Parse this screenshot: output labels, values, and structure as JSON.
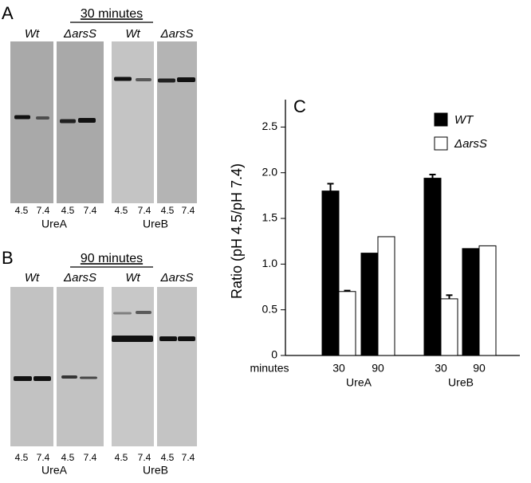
{
  "panel_a": {
    "label": "A",
    "title": "30 minutes",
    "strains": [
      "Wt",
      "ΔarsS",
      "Wt",
      "ΔarsS"
    ],
    "ph": [
      "4.5",
      "7.4",
      "4.5",
      "7.4",
      "4.5",
      "7.4",
      "4.5",
      "7.4"
    ],
    "proteins": [
      "UreA",
      "UreB"
    ]
  },
  "panel_b": {
    "label": "B",
    "title": "90 minutes",
    "strains": [
      "Wt",
      "ΔarsS",
      "Wt",
      "ΔarsS"
    ],
    "ph": [
      "4.5",
      "7.4",
      "4.5",
      "7.4",
      "4.5",
      "7.4",
      "4.5",
      "7.4"
    ],
    "proteins": [
      "UreA",
      "UreB"
    ]
  },
  "chart_data": {
    "type": "bar",
    "panel_label": "C",
    "y_label": "Ratio (pH 4.5/pH 7.4)",
    "x_label": "minutes",
    "categories": [
      "30",
      "90",
      "30",
      "90"
    ],
    "groups": [
      "UreA",
      "UreB"
    ],
    "series": [
      {
        "name": "WT",
        "color": "#000000",
        "values": [
          1.8,
          1.12,
          1.94,
          1.17
        ],
        "errors": [
          0.08,
          null,
          0.04,
          null
        ]
      },
      {
        "name": "ΔarsS",
        "color": "#ffffff",
        "values": [
          0.7,
          1.3,
          0.62,
          1.2
        ],
        "errors": [
          0.01,
          null,
          0.04,
          null
        ]
      }
    ],
    "ylim": [
      0,
      2.8
    ],
    "yticks": [
      0,
      0.5,
      {
        "value": 1,
        "label": "1.0"
      },
      1.5,
      {
        "value": 2,
        "label": "2.0"
      },
      2.5
    ]
  }
}
